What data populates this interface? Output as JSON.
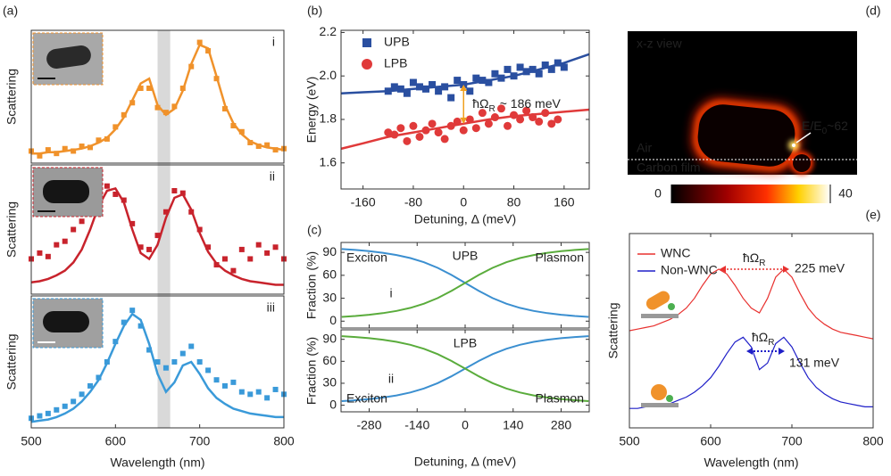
{
  "chart_data": [
    {
      "type": "spectra",
      "panel_label": "(a)",
      "x_label": "Wavelength (nm)",
      "xlim": [
        500,
        800
      ],
      "xticks": [
        500,
        600,
        700,
        800
      ],
      "ylim": [
        0,
        1.1
      ],
      "highlight": [
        650,
        665
      ],
      "x": [
        500,
        510,
        520,
        530,
        540,
        550,
        560,
        570,
        580,
        590,
        600,
        610,
        620,
        630,
        640,
        650,
        660,
        670,
        680,
        690,
        700,
        710,
        720,
        730,
        740,
        750,
        760,
        770,
        780,
        790,
        800
      ],
      "subplots": [
        {
          "label": "i",
          "y_label": "Scattering",
          "color": "#f0922b",
          "values": [
            0.1,
            0.06,
            0.11,
            0.08,
            0.12,
            0.1,
            0.14,
            0.13,
            0.19,
            0.2,
            0.3,
            0.4,
            0.5,
            0.62,
            0.62,
            0.46,
            0.42,
            0.47,
            0.62,
            0.8,
            1.0,
            0.93,
            0.7,
            0.45,
            0.31,
            0.26,
            0.17,
            0.14,
            0.15,
            0.11,
            0.12
          ],
          "fit": [
            0.08,
            0.08,
            0.09,
            0.09,
            0.1,
            0.11,
            0.12,
            0.14,
            0.17,
            0.21,
            0.28,
            0.38,
            0.52,
            0.66,
            0.7,
            0.48,
            0.4,
            0.45,
            0.6,
            0.82,
            0.98,
            0.95,
            0.72,
            0.48,
            0.33,
            0.24,
            0.18,
            0.15,
            0.13,
            0.12,
            0.11
          ]
        },
        {
          "label": "ii",
          "y_label": "Scattering",
          "color": "#c8232c",
          "values": [
            0.3,
            0.35,
            0.32,
            0.42,
            0.45,
            0.55,
            0.62,
            0.75,
            0.85,
            0.92,
            0.85,
            0.8,
            0.6,
            0.4,
            0.38,
            0.5,
            0.7,
            0.88,
            0.86,
            0.7,
            0.55,
            0.4,
            0.25,
            0.3,
            0.2,
            0.38,
            0.3,
            0.42,
            0.35,
            0.4,
            0.3
          ],
          "fit": [
            0.1,
            0.11,
            0.13,
            0.16,
            0.2,
            0.27,
            0.38,
            0.55,
            0.75,
            0.88,
            0.9,
            0.78,
            0.55,
            0.35,
            0.3,
            0.42,
            0.65,
            0.82,
            0.85,
            0.72,
            0.52,
            0.36,
            0.26,
            0.2,
            0.16,
            0.13,
            0.11,
            0.1,
            0.09,
            0.08,
            0.08
          ]
        },
        {
          "label": "iii",
          "y_label": "Scattering",
          "color": "#3a9ad9",
          "values": [
            0.08,
            0.1,
            0.12,
            0.15,
            0.18,
            0.22,
            0.28,
            0.35,
            0.42,
            0.55,
            0.72,
            0.88,
            0.98,
            0.85,
            0.65,
            0.55,
            0.5,
            0.55,
            0.62,
            0.68,
            0.55,
            0.48,
            0.4,
            0.35,
            0.38,
            0.3,
            0.28,
            0.3,
            0.25,
            0.32,
            0.28
          ],
          "fit": [
            0.05,
            0.06,
            0.07,
            0.09,
            0.12,
            0.16,
            0.22,
            0.3,
            0.4,
            0.54,
            0.7,
            0.85,
            0.95,
            0.9,
            0.7,
            0.45,
            0.3,
            0.38,
            0.52,
            0.55,
            0.45,
            0.33,
            0.25,
            0.2,
            0.16,
            0.14,
            0.12,
            0.11,
            0.1,
            0.09,
            0.09
          ]
        }
      ]
    },
    {
      "type": "scatter",
      "panel_label": "(b)",
      "x_label": "Detuning, Δ (meV)",
      "y_label": "Energy (eV)",
      "xlim": [
        -195,
        200
      ],
      "xticks": [
        -160,
        -80,
        0,
        80,
        160
      ],
      "ylim": [
        1.48,
        2.21
      ],
      "yticks": [
        1.6,
        1.8,
        {
          "value": 2,
          "label": "2.0"
        },
        2.2
      ],
      "fit_x": [
        -195,
        -160,
        -120,
        -80,
        -40,
        0,
        40,
        80,
        120,
        160,
        200
      ],
      "series": [
        {
          "name": "UPB",
          "color": "#2a4fa0",
          "marker": "square",
          "x": [
            -120,
            -110,
            -100,
            -90,
            -80,
            -70,
            -60,
            -50,
            -40,
            -30,
            -20,
            -10,
            0,
            10,
            20,
            30,
            40,
            50,
            60,
            70,
            80,
            90,
            100,
            110,
            120,
            130,
            140,
            150,
            160
          ],
          "values": [
            1.93,
            1.95,
            1.94,
            1.92,
            1.97,
            1.95,
            1.94,
            1.96,
            1.93,
            1.95,
            1.9,
            1.98,
            1.96,
            1.93,
            1.99,
            1.98,
            1.97,
            2.01,
            1.99,
            2.03,
            2.0,
            2.04,
            2.02,
            2.03,
            2.01,
            2.05,
            2.03,
            2.06,
            2.04
          ],
          "fit": [
            1.92,
            1.925,
            1.93,
            1.94,
            1.95,
            1.96,
            1.98,
            2.0,
            2.03,
            2.06,
            2.1
          ]
        },
        {
          "name": "LPB",
          "color": "#e03a3a",
          "marker": "circle",
          "x": [
            -120,
            -110,
            -100,
            -90,
            -80,
            -70,
            -60,
            -50,
            -40,
            -30,
            -20,
            -10,
            0,
            10,
            20,
            30,
            40,
            50,
            60,
            70,
            80,
            90,
            100,
            110,
            120,
            130,
            140,
            150
          ],
          "values": [
            1.74,
            1.73,
            1.76,
            1.7,
            1.77,
            1.72,
            1.75,
            1.78,
            1.74,
            1.71,
            1.77,
            1.79,
            1.75,
            1.8,
            1.76,
            1.83,
            1.78,
            1.81,
            1.85,
            1.77,
            1.82,
            1.8,
            1.84,
            1.81,
            1.79,
            1.83,
            1.78,
            1.8
          ],
          "fit": [
            1.665,
            1.69,
            1.72,
            1.74,
            1.76,
            1.78,
            1.8,
            1.815,
            1.825,
            1.835,
            1.845
          ]
        }
      ],
      "annotation": {
        "text": "ħΩ",
        "sub": "R",
        "rest": "~ 186 meV",
        "color": "#f0a020"
      }
    },
    {
      "type": "fraction",
      "panel_label": "(c)",
      "x_label": "Detuning, Δ  (meV)",
      "y_label": "Fraction (%)",
      "xlim": [
        -362,
        362
      ],
      "xticks": [
        -280,
        -140,
        0,
        140,
        280
      ],
      "ylim": [
        -9,
        103
      ],
      "yticks": [
        0,
        30,
        60,
        90
      ],
      "x": [
        -360,
        -320,
        -280,
        -240,
        -200,
        -160,
        -120,
        -80,
        -40,
        0,
        40,
        80,
        120,
        160,
        200,
        240,
        280,
        320,
        360
      ],
      "subplots": [
        {
          "title": "UPB",
          "label": "i",
          "series": [
            {
              "name": "Exciton",
              "color": "#3b8fd0",
              "values": [
                94.4,
                93.2,
                91.6,
                89.5,
                86.6,
                82.6,
                77.1,
                69.8,
                60.5,
                50,
                39.5,
                30.2,
                22.9,
                17.4,
                13.4,
                10.5,
                8.4,
                6.8,
                5.6
              ]
            },
            {
              "name": "Plasmon",
              "color": "#5aac3c",
              "values": [
                5.6,
                6.8,
                8.4,
                10.5,
                13.4,
                17.4,
                22.9,
                30.2,
                39.5,
                50,
                60.5,
                69.8,
                77.1,
                82.6,
                86.6,
                89.5,
                91.6,
                93.2,
                94.4
              ]
            }
          ]
        },
        {
          "title": "LPB",
          "label": "ii",
          "series": [
            {
              "name": "Exciton",
              "color": "#3b8fd0",
              "values": [
                5.6,
                6.8,
                8.4,
                10.5,
                13.4,
                17.4,
                22.9,
                30.2,
                39.5,
                50,
                60.5,
                69.8,
                77.1,
                82.6,
                86.6,
                89.5,
                91.6,
                93.2,
                94.4
              ]
            },
            {
              "name": "Plasmon",
              "color": "#5aac3c",
              "values": [
                94.4,
                93.2,
                91.6,
                89.5,
                86.6,
                82.6,
                77.1,
                69.8,
                60.5,
                50,
                39.5,
                30.2,
                22.9,
                17.4,
                13.4,
                10.5,
                8.4,
                6.8,
                5.6
              ]
            }
          ]
        }
      ]
    },
    {
      "type": "heatmap",
      "panel_label": "(d)",
      "view_label": "x-z view",
      "labels": [
        "Air",
        "Carbon film"
      ],
      "enhancement": {
        "text": "E/E",
        "sub": "0",
        "rest": "~62"
      },
      "clim": [
        0,
        40
      ]
    },
    {
      "type": "line",
      "panel_label": "(e)",
      "x_label": "Wavelength (nm)",
      "y_label": "Scattering",
      "xlim": [
        500,
        800
      ],
      "xticks": [
        500,
        600,
        700,
        800
      ],
      "ylim": [
        0,
        1.2
      ],
      "x": [
        500,
        510,
        520,
        530,
        540,
        550,
        560,
        570,
        580,
        590,
        600,
        610,
        620,
        630,
        640,
        650,
        660,
        670,
        680,
        690,
        700,
        710,
        720,
        730,
        740,
        750,
        760,
        770,
        780,
        790,
        800
      ],
      "splitting_symbol": {
        "text": "ħΩ",
        "sub": "R"
      },
      "series": [
        {
          "name": "WNC",
          "color": "#e8312f",
          "splitting": "225 meV",
          "values": [
            0.6,
            0.61,
            0.62,
            0.63,
            0.65,
            0.67,
            0.7,
            0.74,
            0.8,
            0.88,
            0.95,
            0.98,
            0.95,
            0.88,
            0.8,
            0.74,
            0.71,
            0.8,
            0.93,
            0.98,
            0.93,
            0.83,
            0.74,
            0.68,
            0.64,
            0.61,
            0.59,
            0.58,
            0.57,
            0.56,
            0.55
          ]
        },
        {
          "name": "Non-WNC",
          "color": "#1f1fc8",
          "splitting": "131 meV",
          "values": [
            0.12,
            0.12,
            0.13,
            0.13,
            0.14,
            0.15,
            0.17,
            0.19,
            0.22,
            0.26,
            0.31,
            0.38,
            0.46,
            0.53,
            0.56,
            0.5,
            0.36,
            0.4,
            0.52,
            0.56,
            0.5,
            0.4,
            0.31,
            0.25,
            0.21,
            0.18,
            0.16,
            0.15,
            0.14,
            0.13,
            0.13
          ]
        }
      ]
    }
  ]
}
